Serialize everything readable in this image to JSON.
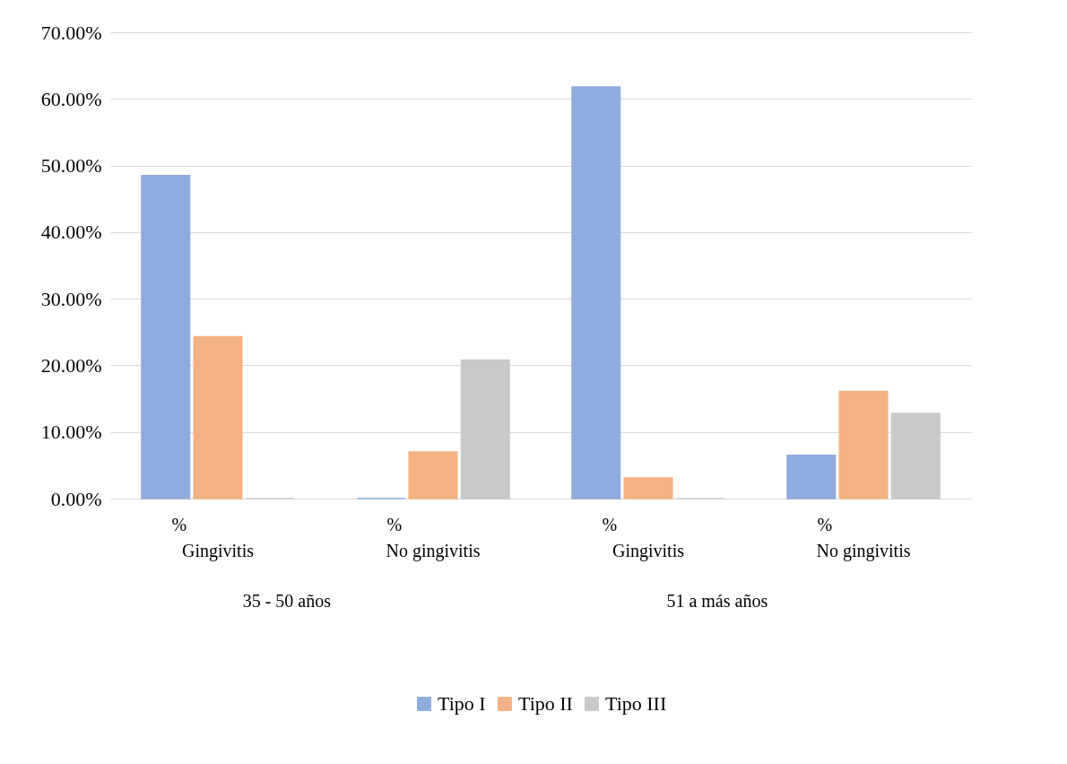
{
  "chart_data": {
    "type": "bar",
    "categories": [
      "Gingivitis",
      "No gingivitis",
      "Gingivitis",
      "No gingivitis"
    ],
    "series": [
      {
        "name": "Tipo I",
        "color": "#8faadc",
        "values": [
          48.5,
          0,
          61.8,
          6.5
        ]
      },
      {
        "name": "Tipo II",
        "color": "#f4b183",
        "values": [
          24.3,
          7,
          3.1,
          16.1
        ]
      },
      {
        "name": "Tipo III",
        "color": "#c9c9c9",
        "values": [
          0,
          20.8,
          0,
          12.8
        ]
      }
    ],
    "ylim": [
      0,
      70
    ],
    "yticks": [
      {
        "value": 0,
        "label": "0.00%"
      },
      {
        "value": 10,
        "label": "10.00%"
      },
      {
        "value": 20,
        "label": "20.00%"
      },
      {
        "value": 30,
        "label": "30.00%"
      },
      {
        "value": 40,
        "label": "40.00%"
      },
      {
        "value": 50,
        "label": "50.00%"
      },
      {
        "value": 60,
        "label": "60.00%"
      },
      {
        "value": 70,
        "label": "70.00%"
      }
    ],
    "annotations": [
      "%",
      "%",
      "%",
      "%",
      "35 - 50 años",
      "51 a más años"
    ],
    "grid": "y",
    "legend": "bottom"
  }
}
